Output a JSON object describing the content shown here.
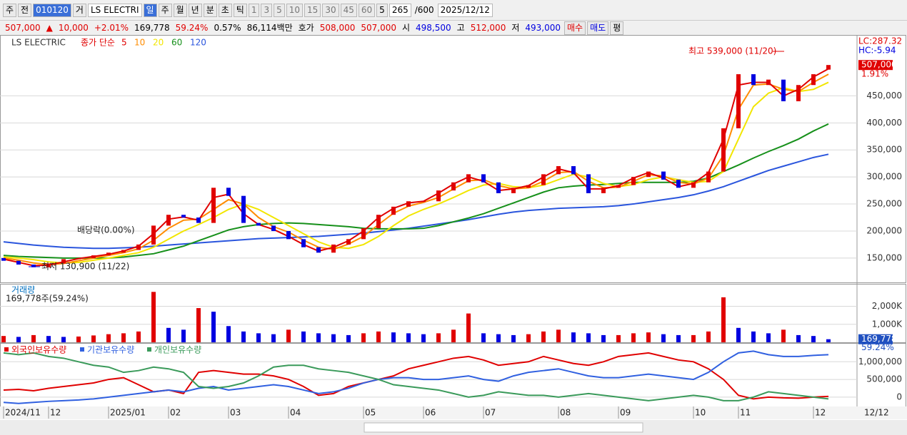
{
  "toolbar": {
    "market": "주",
    "prev": "전",
    "code": "010120",
    "ge": "거",
    "name": "LS ELECTRI",
    "periods": [
      "일",
      "주",
      "월",
      "년",
      "분",
      "초",
      "틱"
    ],
    "intervals": [
      "1",
      "3",
      "5",
      "10",
      "15",
      "30",
      "45",
      "60"
    ],
    "unit": "5",
    "count": "265",
    "max": "/600",
    "date": "2025/12/12"
  },
  "quote": {
    "price": "507,000",
    "arrow": "▲",
    "change": "10,000",
    "rate": "+2.01%",
    "volume": "169,778",
    "volume_rate": "59.24%",
    "turnover": "0.57%",
    "amount": "86,114백만",
    "hoga_label": "호가",
    "ask": "508,000",
    "bid": "507,000",
    "open_label": "시",
    "open": "498,500",
    "high_label": "고",
    "high": "512,000",
    "low_label": "저",
    "low": "493,000",
    "buy": "매수",
    "sell": "매도",
    "avg": "평"
  },
  "chart_data": [
    {
      "type": "candlestick",
      "title": "LS ELECTRIC",
      "ma_label": "종가 단순",
      "up_color": "#e00000",
      "down_color": "#0000e0",
      "open": [
        150000,
        145000,
        138000,
        133000,
        140000,
        148000,
        150000,
        155000,
        160000,
        165000,
        175000,
        210000,
        230000,
        225000,
        215000,
        280000,
        265000,
        215000,
        210000,
        200000,
        185000,
        170000,
        160000,
        175000,
        185000,
        205000,
        230000,
        245000,
        255000,
        255000,
        275000,
        290000,
        305000,
        290000,
        270000,
        280000,
        285000,
        305000,
        320000,
        305000,
        270000,
        280000,
        285000,
        300000,
        310000,
        295000,
        280000,
        290000,
        310000,
        390000,
        490000,
        470000,
        480000,
        440000,
        470000,
        498500
      ],
      "close": [
        145000,
        138000,
        133000,
        140000,
        148000,
        150000,
        155000,
        160000,
        165000,
        175000,
        210000,
        230000,
        225000,
        215000,
        280000,
        265000,
        215000,
        210000,
        200000,
        185000,
        170000,
        160000,
        175000,
        185000,
        205000,
        230000,
        245000,
        255000,
        255000,
        275000,
        290000,
        305000,
        290000,
        270000,
        280000,
        285000,
        305000,
        320000,
        305000,
        270000,
        280000,
        285000,
        300000,
        310000,
        295000,
        280000,
        290000,
        310000,
        390000,
        490000,
        470000,
        480000,
        440000,
        470000,
        490000,
        507000
      ],
      "series": [
        {
          "name": "5",
          "color": "#e00000",
          "values": [
            148000,
            142000,
            136000,
            137000,
            143000,
            149000,
            153000,
            157000,
            163000,
            172000,
            195000,
            222000,
            226000,
            220000,
            262000,
            268000,
            232000,
            212000,
            203000,
            190000,
            175000,
            163000,
            170000,
            182000,
            200000,
            225000,
            242000,
            252000,
            255000,
            270000,
            287000,
            300000,
            292000,
            275000,
            278000,
            284000,
            300000,
            315000,
            308000,
            278000,
            278000,
            284000,
            298000,
            308000,
            298000,
            282000,
            288000,
            308000,
            370000,
            470000,
            475000,
            475000,
            450000,
            462000,
            485000,
            500000
          ]
        },
        {
          "name": "10",
          "color": "#ff8c00",
          "values": [
            150000,
            146000,
            141000,
            138000,
            140000,
            145000,
            150000,
            155000,
            160000,
            167000,
            183000,
            205000,
            220000,
            222000,
            240000,
            258000,
            250000,
            225000,
            208000,
            198000,
            183000,
            170000,
            166000,
            176000,
            190000,
            212000,
            233000,
            246000,
            253000,
            262000,
            278000,
            293000,
            295000,
            284000,
            278000,
            280000,
            292000,
            308000,
            310000,
            292000,
            280000,
            281000,
            292000,
            304000,
            302000,
            290000,
            287000,
            298000,
            340000,
            425000,
            470000,
            472000,
            462000,
            458000,
            475000,
            490000
          ]
        },
        {
          "name": "20",
          "color": "#f2e600",
          "values": [
            152000,
            150000,
            147000,
            143000,
            141000,
            142000,
            146000,
            150000,
            155000,
            160000,
            170000,
            185000,
            200000,
            212000,
            225000,
            240000,
            250000,
            240000,
            225000,
            210000,
            195000,
            180000,
            170000,
            168000,
            175000,
            190000,
            210000,
            228000,
            240000,
            250000,
            262000,
            275000,
            285000,
            288000,
            282000,
            280000,
            285000,
            295000,
            305000,
            300000,
            288000,
            282000,
            286000,
            295000,
            300000,
            295000,
            290000,
            292000,
            310000,
            370000,
            430000,
            455000,
            465000,
            458000,
            462000,
            475000
          ]
        },
        {
          "name": "60",
          "color": "#16901a",
          "values": [
            155000,
            153000,
            152000,
            151000,
            150000,
            150000,
            150000,
            150000,
            152000,
            155000,
            158000,
            165000,
            172000,
            182000,
            192000,
            202000,
            208000,
            212000,
            214000,
            215000,
            214000,
            212000,
            210000,
            208000,
            205000,
            204000,
            204000,
            204000,
            205000,
            210000,
            217000,
            224000,
            232000,
            242000,
            252000,
            262000,
            272000,
            280000,
            283000,
            285000,
            286000,
            288000,
            290000,
            290000,
            290000,
            290000,
            292000,
            298000,
            310000,
            322000,
            335000,
            347000,
            358000,
            370000,
            385000,
            398000
          ]
        },
        {
          "name": "120",
          "color": "#2a55dd",
          "values": [
            180000,
            177000,
            174000,
            172000,
            170000,
            169000,
            168000,
            168000,
            169000,
            170000,
            172000,
            174000,
            176000,
            178000,
            180000,
            182000,
            184000,
            186000,
            187000,
            188000,
            189000,
            190000,
            192000,
            194000,
            196000,
            199000,
            202000,
            205000,
            209000,
            213000,
            217000,
            221000,
            226000,
            231000,
            235000,
            238000,
            240000,
            242000,
            243000,
            244000,
            245000,
            247000,
            250000,
            254000,
            258000,
            262000,
            267000,
            274000,
            282000,
            292000,
            302000,
            312000,
            320000,
            328000,
            336000,
            342000
          ]
        }
      ],
      "ylim": [
        105000,
        560000
      ],
      "yticks": [
        {
          "value": 150000,
          "label": "150,000"
        },
        {
          "value": 200000,
          "label": "200,000"
        },
        {
          "value": 250000,
          "label": "250,000"
        },
        {
          "value": 300000,
          "label": "300,000"
        },
        {
          "value": 350000,
          "label": "350,000"
        },
        {
          "value": 400000,
          "label": "400,000"
        },
        {
          "value": 450000,
          "label": "450,000"
        }
      ],
      "grid": true,
      "current": {
        "value": 507000,
        "label": "507,000"
      },
      "current_rate": "1.91%",
      "lc": "LC:287.32",
      "hc": "HC:-5.94",
      "annotations": [
        "배당락(0.00%)",
        "최저 130,900 (11/22)",
        "최고 539,000 (11/20)"
      ]
    },
    {
      "type": "bar",
      "title": "거래량",
      "subtitle": "169,778주(59.24%)",
      "up_color": "#e00000",
      "down_color": "#0000e0",
      "values": [
        350000,
        300000,
        400000,
        350000,
        300000,
        320000,
        380000,
        450000,
        500000,
        600000,
        2800000,
        800000,
        700000,
        1900000,
        1700000,
        900000,
        600000,
        500000,
        450000,
        700000,
        600000,
        500000,
        450000,
        400000,
        500000,
        600000,
        550000,
        500000,
        450000,
        500000,
        700000,
        1600000,
        500000,
        450000,
        400000,
        450000,
        600000,
        700000,
        550000,
        500000,
        400000,
        400000,
        500000,
        550000,
        450000,
        400000,
        400000,
        600000,
        2500000,
        800000,
        600000,
        500000,
        700000,
        400000,
        350000,
        169778
      ],
      "ylim": [
        0,
        3170000
      ],
      "yticks": [
        {
          "value": 1000000,
          "label": "1,000K"
        },
        {
          "value": 2000000,
          "label": "2,000K"
        }
      ],
      "current": {
        "value": 169778,
        "label": "169,778"
      },
      "current_rate": "59.24%"
    },
    {
      "type": "line",
      "categories": [
        "2024/11",
        null,
        null,
        "12",
        null,
        null,
        null,
        "2025/01",
        null,
        null,
        null,
        "02",
        null,
        null,
        null,
        "03",
        null,
        null,
        null,
        "04",
        null,
        null,
        null,
        null,
        "05",
        null,
        null,
        null,
        "06",
        null,
        null,
        null,
        "07",
        null,
        null,
        null,
        null,
        "08",
        null,
        null,
        null,
        "09",
        null,
        null,
        null,
        null,
        "10",
        null,
        null,
        "11",
        null,
        null,
        null,
        null,
        "12",
        null
      ],
      "x_end_label": "12/12",
      "series": [
        {
          "name": "외국인보유수량",
          "color": "#e00000",
          "values": [
            200000,
            220000,
            180000,
            250000,
            300000,
            350000,
            400000,
            500000,
            550000,
            350000,
            150000,
            200000,
            100000,
            700000,
            750000,
            700000,
            650000,
            650000,
            600000,
            500000,
            300000,
            50000,
            100000,
            300000,
            400000,
            500000,
            600000,
            800000,
            900000,
            1000000,
            1100000,
            1150000,
            1050000,
            900000,
            950000,
            1000000,
            1150000,
            1050000,
            950000,
            900000,
            1000000,
            1150000,
            1200000,
            1250000,
            1150000,
            1050000,
            1000000,
            800000,
            500000,
            50000,
            -50000,
            0,
            -20000,
            -30000,
            0,
            20000
          ]
        },
        {
          "name": "기관보유수량",
          "color": "#3060e0",
          "values": [
            -150000,
            -180000,
            -150000,
            -120000,
            -100000,
            -80000,
            -50000,
            0,
            50000,
            100000,
            150000,
            200000,
            150000,
            250000,
            300000,
            200000,
            250000,
            300000,
            350000,
            300000,
            200000,
            100000,
            150000,
            250000,
            400000,
            500000,
            550000,
            550000,
            500000,
            500000,
            550000,
            600000,
            500000,
            450000,
            600000,
            700000,
            750000,
            800000,
            700000,
            600000,
            550000,
            550000,
            600000,
            650000,
            600000,
            550000,
            500000,
            700000,
            1000000,
            1250000,
            1300000,
            1200000,
            1150000,
            1150000,
            1180000,
            1200000
          ]
        },
        {
          "name": "개인보유수량",
          "color": "#3a9a5a",
          "values": [
            1250000,
            1200000,
            1250000,
            1150000,
            1100000,
            1000000,
            900000,
            850000,
            700000,
            750000,
            850000,
            800000,
            700000,
            300000,
            250000,
            300000,
            400000,
            600000,
            850000,
            900000,
            900000,
            800000,
            750000,
            700000,
            600000,
            500000,
            350000,
            300000,
            250000,
            200000,
            100000,
            0,
            50000,
            150000,
            100000,
            50000,
            50000,
            0,
            50000,
            100000,
            50000,
            0,
            -50000,
            -100000,
            -50000,
            0,
            50000,
            0,
            -100000,
            -100000,
            0,
            150000,
            100000,
            50000,
            0,
            -50000
          ]
        }
      ],
      "ylim": [
        -265000,
        1490000
      ],
      "yticks": [
        0,
        {
          "value": 500000,
          "label": "500,000"
        },
        {
          "value": 1000000,
          "label": "1,000,000"
        }
      ]
    }
  ]
}
